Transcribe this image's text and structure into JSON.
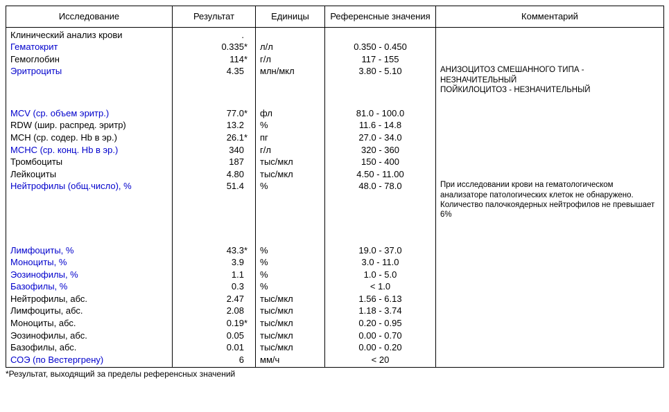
{
  "headers": {
    "test": "Исследование",
    "result": "Результат",
    "units": "Единицы",
    "reference": "Референсные значения",
    "comment": "Комментарий"
  },
  "rows": [
    {
      "name": "Клинический анализ крови",
      "link": false,
      "result": ".",
      "flag": "",
      "units": "",
      "ref": "",
      "comment": ""
    },
    {
      "name": "Гематокрит",
      "link": true,
      "result": "0.335",
      "flag": "*",
      "units": "л/л",
      "ref": "0.350 - 0.450",
      "comment": ""
    },
    {
      "name": "Гемоглобин",
      "link": false,
      "result": "114",
      "flag": "*",
      "units": "г/л",
      "ref": "117 - 155",
      "comment": ""
    },
    {
      "name": "Эритроциты",
      "link": true,
      "result": "4.35",
      "flag": "",
      "units": "млн/мкл",
      "ref": "3.80 - 5.10",
      "comment": "АНИЗОЦИТОЗ СМЕШАННОГО ТИПА - НЕЗНАЧИТЕЛЬНЫЙ\nПОЙКИЛОЦИТОЗ - НЕЗНАЧИТЕЛЬНЫЙ"
    },
    {
      "name": "",
      "link": false,
      "result": "",
      "flag": "",
      "units": "",
      "ref": "",
      "comment": ""
    },
    {
      "name": "MCV (ср. объем эритр.)",
      "link": true,
      "result": "77.0",
      "flag": "*",
      "units": "фл",
      "ref": "81.0 - 100.0",
      "comment": ""
    },
    {
      "name": "RDW (шир. распред. эритр)",
      "link": false,
      "result": "13.2",
      "flag": "",
      "units": "%",
      "ref": "11.6 - 14.8",
      "comment": ""
    },
    {
      "name": "MCH (ср. содер. Hb в эр.)",
      "link": false,
      "result": "26.1",
      "flag": "*",
      "units": "пг",
      "ref": "27.0 - 34.0",
      "comment": ""
    },
    {
      "name": "MCHC (ср. конц. Hb в эр.)",
      "link": true,
      "result": "340",
      "flag": "",
      "units": "г/л",
      "ref": "320 - 360",
      "comment": ""
    },
    {
      "name": "Тромбоциты",
      "link": false,
      "result": "187",
      "flag": "",
      "units": "тыс/мкл",
      "ref": "150 - 400",
      "comment": ""
    },
    {
      "name": "Лейкоциты",
      "link": false,
      "result": "4.80",
      "flag": "",
      "units": "тыс/мкл",
      "ref": "4.50 - 11.00",
      "comment": ""
    },
    {
      "name": "Нейтрофилы (общ.число), %",
      "link": true,
      "result": "51.4",
      "flag": "",
      "units": "%",
      "ref": "48.0 - 78.0",
      "comment": "При исследовании крови на гематологическом анализаторе патологических клеток не обнаружено. Количество палочкоядерных нейтрофилов не превышает 6%"
    },
    {
      "name": "",
      "link": false,
      "result": "",
      "flag": "",
      "units": "",
      "ref": "",
      "comment": ""
    },
    {
      "name": "",
      "link": false,
      "result": "",
      "flag": "",
      "units": "",
      "ref": "",
      "comment": ""
    },
    {
      "name": "Лимфоциты, %",
      "link": true,
      "result": "43.3",
      "flag": "*",
      "units": "%",
      "ref": "19.0 - 37.0",
      "comment": ""
    },
    {
      "name": "Моноциты, %",
      "link": true,
      "result": "3.9",
      "flag": "",
      "units": "%",
      "ref": "3.0 - 11.0",
      "comment": ""
    },
    {
      "name": "Эозинофилы, %",
      "link": true,
      "result": "1.1",
      "flag": "",
      "units": "%",
      "ref": "1.0 - 5.0",
      "comment": ""
    },
    {
      "name": "Базофилы, %",
      "link": true,
      "result": "0.3",
      "flag": "",
      "units": "%",
      "ref": "< 1.0",
      "comment": ""
    },
    {
      "name": "Нейтрофилы, абс.",
      "link": false,
      "result": "2.47",
      "flag": "",
      "units": "тыс/мкл",
      "ref": "1.56 - 6.13",
      "comment": ""
    },
    {
      "name": "Лимфоциты, абс.",
      "link": false,
      "result": "2.08",
      "flag": "",
      "units": "тыс/мкл",
      "ref": "1.18 - 3.74",
      "comment": ""
    },
    {
      "name": "Моноциты, абс.",
      "link": false,
      "result": "0.19",
      "flag": "*",
      "units": "тыс/мкл",
      "ref": "0.20 - 0.95",
      "comment": ""
    },
    {
      "name": "Эозинофилы, абс.",
      "link": false,
      "result": "0.05",
      "flag": "",
      "units": "тыс/мкл",
      "ref": "0.00 - 0.70",
      "comment": ""
    },
    {
      "name": "Базофилы, абс.",
      "link": false,
      "result": "0.01",
      "flag": "",
      "units": "тыс/мкл",
      "ref": "0.00 - 0.20",
      "comment": ""
    },
    {
      "name": "СОЭ (по Вестергрену)",
      "link": true,
      "result": "6",
      "flag": "",
      "units": "мм/ч",
      "ref": "< 20",
      "comment": ""
    }
  ],
  "footnote": "*Результат, выходящий за пределы референсных значений"
}
